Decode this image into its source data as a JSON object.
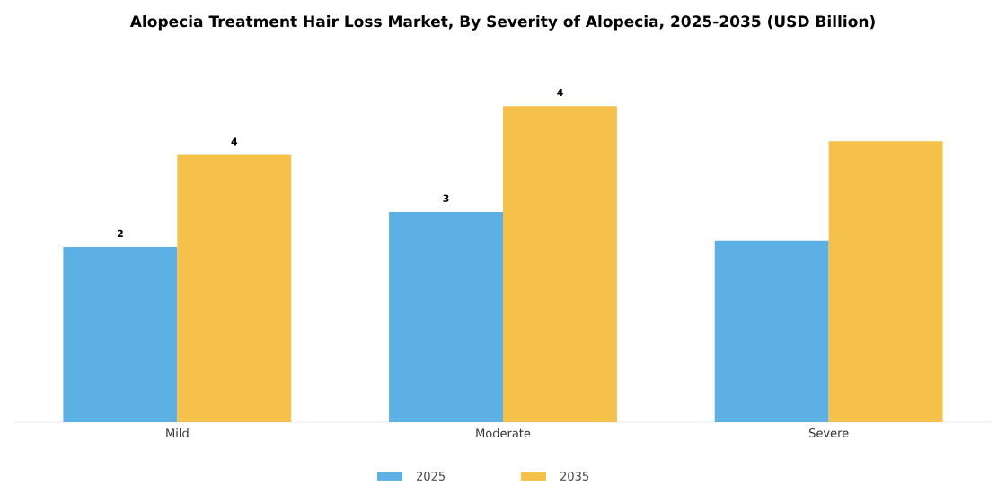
{
  "chart_data": {
    "type": "bar",
    "title": "Alopecia Treatment Hair Loss Market, By Severity of Alopecia, 2025-2035 (USD Billion)",
    "categories": [
      "Mild",
      "Moderate",
      "Severe"
    ],
    "legend": "bottom",
    "series": [
      {
        "name": "2025",
        "color": "#5db0e4",
        "values": [
          2.4,
          2.88,
          2.49
        ],
        "value_labels": [
          "2",
          "3",
          null
        ]
      },
      {
        "name": "2035",
        "color": "#f6c14b",
        "values": [
          3.66,
          4.33,
          3.85
        ],
        "value_labels": [
          "4",
          "4",
          null
        ]
      }
    ]
  }
}
